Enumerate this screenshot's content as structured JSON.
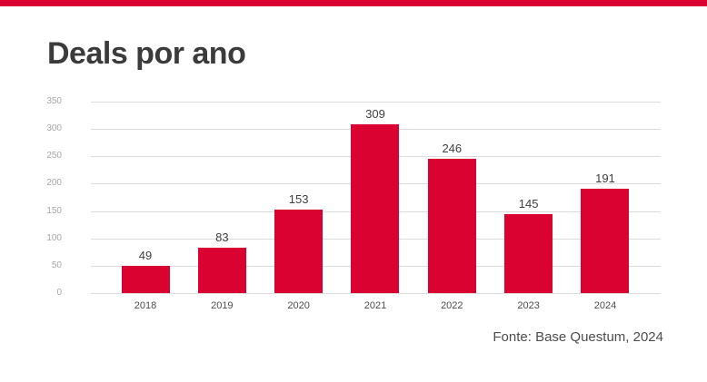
{
  "page": {
    "title": "Deals por ano",
    "source": "Fonte: Base Questum, 2024"
  },
  "colors": {
    "accent": "#da0230",
    "bar": "#da0230",
    "grid": "#dcdcdc",
    "title_text": "#3b3b3b",
    "value_label": "#404040",
    "ytick_label": "#a6a6a6",
    "category_label": "#4d4d4d",
    "source_text": "#4d4d4d"
  },
  "chart_data": {
    "type": "bar",
    "title": "Deals por ano",
    "categories": [
      "2018",
      "2019",
      "2020",
      "2021",
      "2022",
      "2023",
      "2024"
    ],
    "values": [
      49,
      83,
      153,
      309,
      246,
      145,
      191
    ],
    "xlabel": "",
    "ylabel": "",
    "ylim": [
      0,
      350
    ],
    "yticks": [
      0,
      50,
      100,
      150,
      200,
      250,
      300,
      350
    ],
    "grid": true,
    "legend": false,
    "data_labels": true,
    "source": "Fonte: Base Questum, 2024"
  }
}
